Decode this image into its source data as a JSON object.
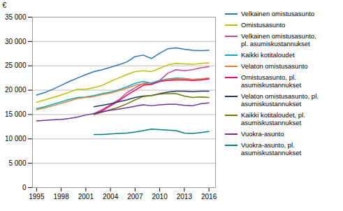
{
  "chart_data": {
    "type": "line",
    "ylabel": "€",
    "x": [
      1995,
      1996,
      1997,
      1998,
      1999,
      2000,
      2001,
      2002,
      2003,
      2004,
      2005,
      2006,
      2007,
      2008,
      2009,
      2010,
      2011,
      2012,
      2013,
      2014,
      2015,
      2016
    ],
    "series": [
      {
        "name": "Velkainen omistusasunto",
        "color": "#2E75B6",
        "values": [
          19000,
          19500,
          20200,
          21000,
          21800,
          22500,
          23200,
          23800,
          24200,
          24700,
          25200,
          25800,
          26900,
          27200,
          26500,
          27600,
          28500,
          28700,
          28400,
          28200,
          28100,
          28200
        ]
      },
      {
        "name": "Omistusasunto",
        "color": "#BFBF00",
        "values": [
          17500,
          18000,
          18500,
          19000,
          19600,
          20200,
          20200,
          20500,
          21000,
          21800,
          22500,
          23200,
          23800,
          24000,
          23800,
          24500,
          25200,
          25500,
          25400,
          25300,
          25500,
          25600
        ]
      },
      {
        "name": "Velkainen omistusasunto,\npl. asumiskustannukset",
        "color": "#BE4B96",
        "values": [
          null,
          null,
          null,
          null,
          null,
          null,
          null,
          15200,
          16000,
          17000,
          18000,
          19500,
          20500,
          21400,
          21500,
          22000,
          23500,
          24200,
          24000,
          24200,
          24600,
          24800
        ]
      },
      {
        "name": "Kaikki kotitaloudet",
        "color": "#00B0BE",
        "values": [
          16200,
          16600,
          17100,
          17600,
          18100,
          18500,
          18600,
          18900,
          19300,
          19600,
          20100,
          20700,
          21400,
          21800,
          21400,
          22000,
          22300,
          22500,
          22400,
          22200,
          22300,
          22500
        ]
      },
      {
        "name": "Velaton omistusasunto",
        "color": "#ED7D31",
        "values": [
          16000,
          16400,
          16800,
          17300,
          17800,
          18300,
          18500,
          18700,
          19100,
          19400,
          19900,
          20400,
          21000,
          21300,
          21200,
          21800,
          22200,
          22300,
          22300,
          22200,
          22300,
          22500
        ]
      },
      {
        "name": "Omistusasunto, pl.\nasumiskustannukset",
        "color": "#FF0066",
        "values": [
          null,
          null,
          null,
          null,
          null,
          null,
          null,
          15000,
          15800,
          16800,
          17800,
          19000,
          20000,
          21000,
          21200,
          21800,
          22000,
          22100,
          22100,
          22000,
          22100,
          22300
        ]
      },
      {
        "name": "Velaton omistusasunto, pl.\nasumiskustannukset",
        "color": "#1F3864",
        "values": [
          null,
          null,
          null,
          null,
          null,
          null,
          null,
          16600,
          16900,
          17200,
          17600,
          18000,
          18500,
          18800,
          18900,
          19300,
          19600,
          19800,
          19800,
          19700,
          19800,
          19800
        ]
      },
      {
        "name": "Kaikki kotitaloudet, pl.\nasumiskustannukset",
        "color": "#6B7A00",
        "values": [
          null,
          null,
          null,
          null,
          null,
          null,
          null,
          15000,
          15500,
          16000,
          16500,
          17200,
          18000,
          18700,
          18900,
          19200,
          19300,
          19300,
          18800,
          18500,
          18600,
          18500
        ]
      },
      {
        "name": "Vuokra-asunto",
        "color": "#7030A0",
        "values": [
          13700,
          13800,
          13900,
          14000,
          14200,
          14500,
          14900,
          15200,
          15600,
          15900,
          16100,
          16400,
          16700,
          17000,
          16800,
          17000,
          17100,
          17100,
          16900,
          16800,
          17200,
          17400
        ]
      },
      {
        "name": "Vuokra-asunto, pl.\nasumiskustannukset",
        "color": "#008080",
        "values": [
          null,
          null,
          null,
          null,
          null,
          null,
          null,
          10900,
          10900,
          11000,
          11100,
          11200,
          11400,
          11700,
          12000,
          11900,
          11800,
          11700,
          11200,
          11100,
          11300,
          11500
        ]
      }
    ],
    "xlim": [
      1994.5,
      2016.8
    ],
    "xticks": [
      1995,
      1998,
      2001,
      2004,
      2007,
      2010,
      2013,
      2016
    ],
    "ylim": [
      0,
      35000
    ],
    "yticks": [
      0,
      {
        "value": 5000,
        "label": "5 000"
      },
      {
        "value": 10000,
        "label": "10 000"
      },
      {
        "value": 15000,
        "label": "15 000"
      },
      {
        "value": 20000,
        "label": "20 000"
      },
      {
        "value": 25000,
        "label": "25 000"
      },
      {
        "value": 30000,
        "label": "30 000"
      },
      {
        "value": 35000,
        "label": "35 000"
      }
    ],
    "grid": true,
    "legend": "right"
  }
}
